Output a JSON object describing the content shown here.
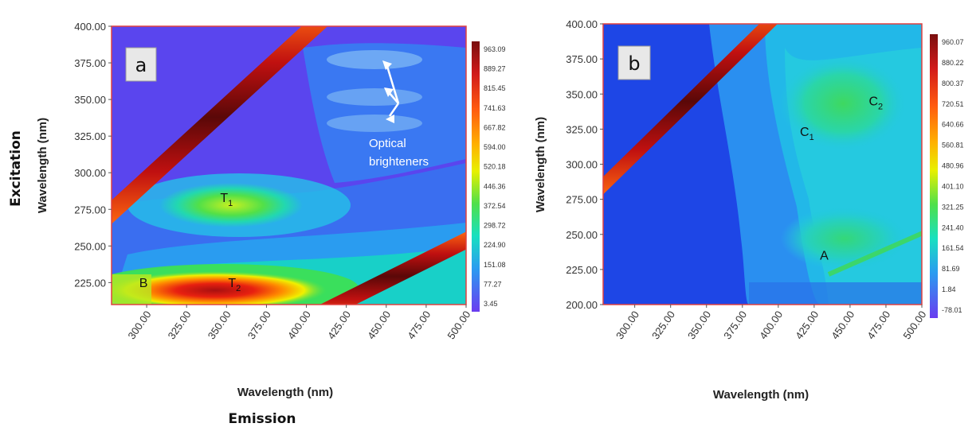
{
  "figure": {
    "excitation_label": "Excitation",
    "emission_label": "Emission"
  },
  "chart_data": [
    {
      "type": "heatmap",
      "panel_label": "a",
      "xlabel": "Wavelength (nm)",
      "ylabel": "Wavelength (nm)",
      "x_ticks": [
        "300.00",
        "325.00",
        "350.00",
        "375.00",
        "400.00",
        "425.00",
        "450.00",
        "475.00",
        "500.00"
      ],
      "y_ticks": [
        "225.00",
        "250.00",
        "275.00",
        "300.00",
        "325.00",
        "350.00",
        "375.00",
        "400.00"
      ],
      "xlim": [
        278,
        500
      ],
      "ylim": [
        210,
        400
      ],
      "colorbar_ticks": [
        "963.09",
        "889.27",
        "815.45",
        "741.63",
        "667.82",
        "594.00",
        "520.18",
        "446.36",
        "372.54",
        "298.72",
        "224.90",
        "151.08",
        "77.27",
        "3.45"
      ],
      "peaks": [
        {
          "label": "T",
          "sub": "1",
          "x": 350,
          "y": 280
        },
        {
          "label": "T",
          "sub": "2",
          "x": 355,
          "y": 222
        },
        {
          "label": "B",
          "sub": "",
          "x": 298,
          "y": 222
        }
      ],
      "annotation": {
        "line1": "Optical",
        "line2": "brighteners",
        "targets_y": [
          375,
          355,
          340
        ],
        "target_x": 450
      }
    },
    {
      "type": "heatmap",
      "panel_label": "b",
      "xlabel": "Wavelength (nm)",
      "ylabel": "Wavelength (nm)",
      "x_ticks": [
        "300.00",
        "325.00",
        "350.00",
        "375.00",
        "400.00",
        "425.00",
        "450.00",
        "475.00",
        "500.00"
      ],
      "y_ticks": [
        "200.00",
        "225.00",
        "250.00",
        "275.00",
        "300.00",
        "325.00",
        "350.00",
        "375.00",
        "400.00"
      ],
      "xlim": [
        278,
        500
      ],
      "ylim": [
        200,
        400
      ],
      "colorbar_ticks": [
        "960.07",
        "880.22",
        "800.37",
        "720.51",
        "640.66",
        "560.81",
        "480.96",
        "401.10",
        "321.25",
        "241.40",
        "161.54",
        "81.69",
        "1.84",
        "-78.01"
      ],
      "peaks": [
        {
          "label": "C",
          "sub": "2",
          "x": 468,
          "y": 342
        },
        {
          "label": "C",
          "sub": "1",
          "x": 420,
          "y": 320
        },
        {
          "label": "A",
          "sub": "",
          "x": 432,
          "y": 232
        }
      ]
    }
  ]
}
